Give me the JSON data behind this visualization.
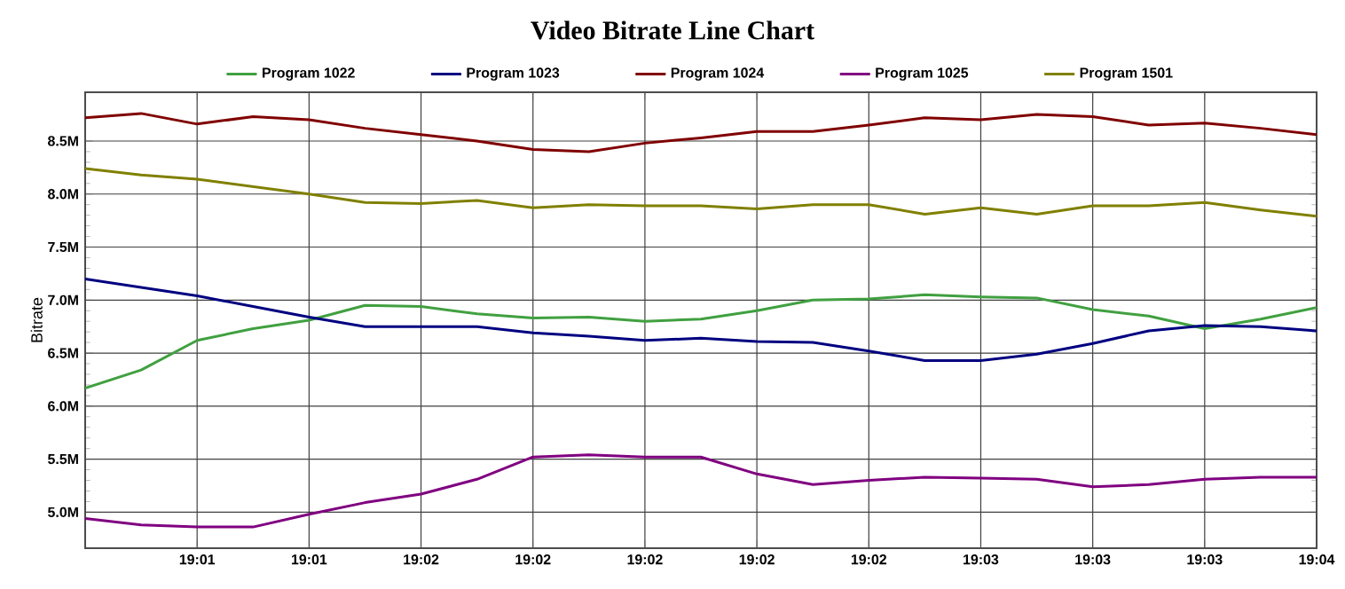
{
  "chart_data": {
    "type": "line",
    "title": "Video Bitrate Line Chart",
    "ylabel": "Bitrate",
    "categories": [
      null,
      null,
      "19:01",
      null,
      "19:01",
      null,
      "19:02",
      null,
      "19:02",
      null,
      "19:02",
      null,
      "19:02",
      null,
      "19:02",
      null,
      "19:03",
      null,
      "19:03",
      null,
      "19:03",
      null,
      "19:04"
    ],
    "series": [
      {
        "name": "Program 1022",
        "color": "#40a040",
        "values": [
          6.17,
          6.34,
          6.62,
          6.73,
          6.81,
          6.95,
          6.94,
          6.87,
          6.83,
          6.84,
          6.8,
          6.82,
          6.9,
          7.0,
          7.01,
          7.05,
          7.03,
          7.02,
          6.91,
          6.85,
          6.73,
          6.82,
          6.93
        ]
      },
      {
        "name": "Program 1023",
        "color": "#000080",
        "values": [
          7.2,
          7.12,
          7.04,
          6.94,
          6.84,
          6.75,
          6.75,
          6.75,
          6.69,
          6.66,
          6.62,
          6.64,
          6.61,
          6.6,
          6.52,
          6.43,
          6.43,
          6.49,
          6.59,
          6.71,
          6.76,
          6.75,
          6.71
        ]
      },
      {
        "name": "Program 1024",
        "color": "#800000",
        "values": [
          8.72,
          8.76,
          8.66,
          8.73,
          8.7,
          8.62,
          8.56,
          8.5,
          8.42,
          8.4,
          8.48,
          8.53,
          8.59,
          8.59,
          8.65,
          8.72,
          8.7,
          8.75,
          8.73,
          8.65,
          8.67,
          8.62,
          8.56
        ]
      },
      {
        "name": "Program 1025",
        "color": "#800080",
        "values": [
          4.94,
          4.88,
          4.86,
          4.86,
          4.98,
          5.09,
          5.17,
          5.31,
          5.52,
          5.54,
          5.52,
          5.52,
          5.36,
          5.26,
          5.3,
          5.33,
          5.32,
          5.31,
          5.24,
          5.26,
          5.31,
          5.33,
          5.33
        ]
      },
      {
        "name": "Program 1501",
        "color": "#808000",
        "values": [
          8.24,
          8.18,
          8.14,
          8.07,
          8.0,
          7.92,
          7.91,
          7.94,
          7.87,
          7.9,
          7.89,
          7.89,
          7.86,
          7.9,
          7.9,
          7.81,
          7.87,
          7.81,
          7.89,
          7.89,
          7.92,
          7.85,
          7.79
        ]
      }
    ],
    "ylim": [
      4.66,
      8.96
    ],
    "yticks": [
      {
        "value": 5,
        "label": "5.0M"
      },
      {
        "value": 5.5,
        "label": "5.5M"
      },
      {
        "value": 6,
        "label": "6.0M"
      },
      {
        "value": 6.5,
        "label": "6.5M"
      },
      {
        "value": 7,
        "label": "7.0M"
      },
      {
        "value": 7.5,
        "label": "7.5M"
      },
      {
        "value": 8,
        "label": "8.0M"
      },
      {
        "value": 8.5,
        "label": "8.5M"
      }
    ],
    "grid": true,
    "legend": "top"
  }
}
